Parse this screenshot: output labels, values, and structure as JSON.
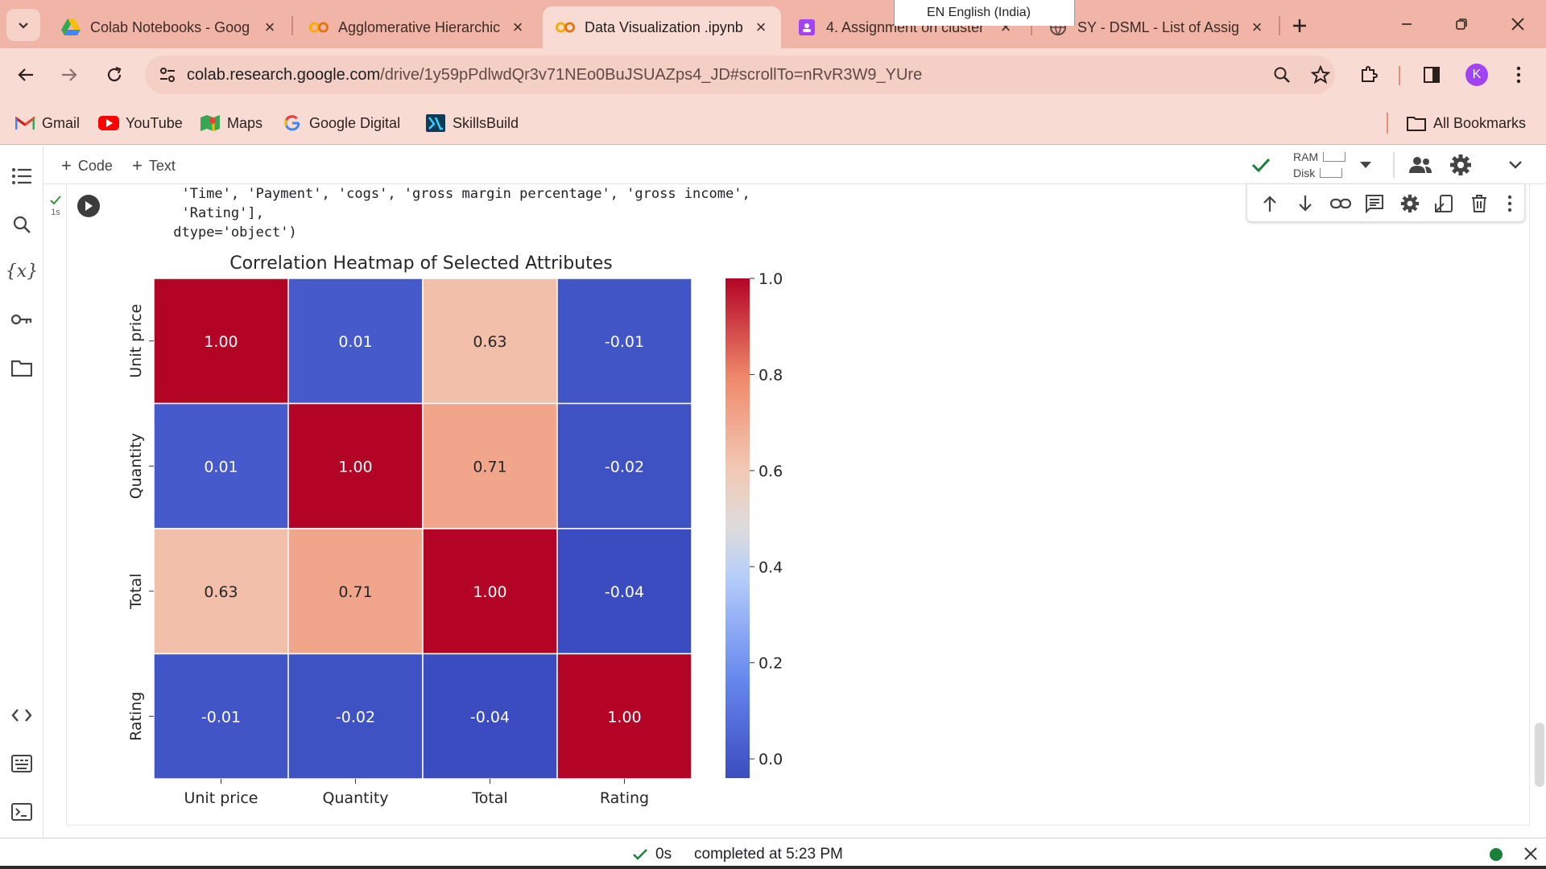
{
  "browser": {
    "tabs": [
      {
        "title": "Colab Notebooks - Goog",
        "icon": "google-drive-icon"
      },
      {
        "title": "Agglomerative Hierarchic",
        "icon": "colab-icon"
      },
      {
        "title": "Data Visualization .ipynb",
        "icon": "colab-icon",
        "active": true
      },
      {
        "title": "4. Assignment on cluster",
        "icon": "classroom-icon"
      },
      {
        "title": "SY - DSML - List of Assig",
        "icon": "web-icon"
      }
    ],
    "language_popup": "EN English (India)",
    "url": {
      "host": "colab.research.google.com",
      "path": "/drive/1y59pPdlwdQr3v71NEo0BuJSUAZps4_JD#scrollTo=nRvR3W9_YUre"
    },
    "profile_initial": "K",
    "bookmarks": [
      "Gmail",
      "YouTube",
      "Maps",
      "Google Digital",
      "SkillsBuild"
    ],
    "all_bookmarks": "All Bookmarks"
  },
  "colab": {
    "add_code": "Code",
    "add_text": "Text",
    "ram_label": "RAM",
    "disk_label": "Disk",
    "exec_time": "1s",
    "output_lines": [
      "  'Time', 'Payment', 'cogs', 'gross margin percentage', 'gross income',",
      "  'Rating'],",
      " dtype='object')"
    ],
    "status": {
      "duration": "0s",
      "completed": "completed at 5:23 PM"
    }
  },
  "chart_data": {
    "type": "heatmap",
    "title": "Correlation Heatmap of Selected Attributes",
    "x_labels": [
      "Unit price",
      "Quantity",
      "Total",
      "Rating"
    ],
    "y_labels": [
      "Unit price",
      "Quantity",
      "Total",
      "Rating"
    ],
    "values": [
      [
        1.0,
        0.01,
        0.63,
        -0.01
      ],
      [
        0.01,
        1.0,
        0.71,
        -0.02
      ],
      [
        0.63,
        0.71,
        1.0,
        -0.04
      ],
      [
        -0.01,
        -0.02,
        -0.04,
        1.0
      ]
    ],
    "colormap": "coolwarm",
    "colorbar_ticks": [
      "0.0",
      "0.2",
      "0.4",
      "0.6",
      "0.8",
      "1.0"
    ],
    "colorbar_range": [
      -0.04,
      1.0
    ]
  }
}
